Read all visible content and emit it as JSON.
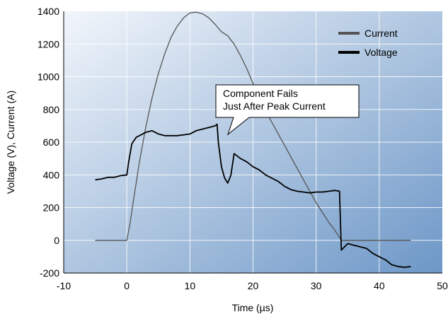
{
  "chart_data": {
    "type": "line",
    "title": "",
    "xlabel": "Time (µs)",
    "ylabel": "Voltage (V), Current (A)",
    "xlim": [
      -10,
      50
    ],
    "ylim": [
      -200,
      1400
    ],
    "x_ticks": [
      -10,
      0,
      10,
      20,
      30,
      40,
      50
    ],
    "y_ticks": [
      -200,
      0,
      200,
      400,
      600,
      800,
      1000,
      1200,
      1400
    ],
    "grid": true,
    "legend_position": "top-right",
    "series": [
      {
        "name": "Current",
        "color": "#555555",
        "points": [
          [
            -5,
            0
          ],
          [
            -3,
            0
          ],
          [
            -1,
            0
          ],
          [
            0,
            0
          ],
          [
            0.5,
            100
          ],
          [
            1,
            230
          ],
          [
            2,
            480
          ],
          [
            3,
            690
          ],
          [
            4,
            870
          ],
          [
            5,
            1020
          ],
          [
            6,
            1140
          ],
          [
            7,
            1240
          ],
          [
            8,
            1310
          ],
          [
            9,
            1360
          ],
          [
            10,
            1390
          ],
          [
            11,
            1395
          ],
          [
            12,
            1385
          ],
          [
            13,
            1360
          ],
          [
            14,
            1320
          ],
          [
            15,
            1275
          ],
          [
            16,
            1250
          ],
          [
            17,
            1200
          ],
          [
            18,
            1130
          ],
          [
            19,
            1050
          ],
          [
            20,
            960
          ],
          [
            21,
            870
          ],
          [
            22,
            790
          ],
          [
            23,
            720
          ],
          [
            24,
            650
          ],
          [
            25,
            580
          ],
          [
            26,
            510
          ],
          [
            27,
            440
          ],
          [
            28,
            370
          ],
          [
            29,
            300
          ],
          [
            30,
            230
          ],
          [
            31,
            170
          ],
          [
            32,
            110
          ],
          [
            33,
            60
          ],
          [
            34,
            0
          ],
          [
            36,
            0
          ],
          [
            38,
            0
          ],
          [
            40,
            0
          ],
          [
            42,
            0
          ],
          [
            44,
            0
          ],
          [
            45,
            0
          ]
        ]
      },
      {
        "name": "Voltage",
        "color": "#000000",
        "points": [
          [
            -5,
            370
          ],
          [
            -4,
            375
          ],
          [
            -3,
            385
          ],
          [
            -2,
            385
          ],
          [
            -1,
            395
          ],
          [
            0,
            400
          ],
          [
            0.3,
            480
          ],
          [
            0.8,
            590
          ],
          [
            1.5,
            630
          ],
          [
            2,
            640
          ],
          [
            3,
            660
          ],
          [
            4,
            670
          ],
          [
            5,
            650
          ],
          [
            6,
            640
          ],
          [
            7,
            640
          ],
          [
            8,
            640
          ],
          [
            9,
            645
          ],
          [
            10,
            650
          ],
          [
            11,
            670
          ],
          [
            12,
            680
          ],
          [
            13,
            690
          ],
          [
            14,
            700
          ],
          [
            14.3,
            710
          ],
          [
            14.5,
            600
          ],
          [
            15,
            450
          ],
          [
            15.5,
            380
          ],
          [
            16,
            350
          ],
          [
            16.5,
            400
          ],
          [
            17,
            530
          ],
          [
            18,
            500
          ],
          [
            19,
            480
          ],
          [
            20,
            450
          ],
          [
            21,
            430
          ],
          [
            22,
            400
          ],
          [
            23,
            380
          ],
          [
            24,
            360
          ],
          [
            25,
            330
          ],
          [
            26,
            310
          ],
          [
            27,
            300
          ],
          [
            28,
            295
          ],
          [
            29,
            290
          ],
          [
            30,
            295
          ],
          [
            31,
            295
          ],
          [
            32,
            300
          ],
          [
            33,
            305
          ],
          [
            33.7,
            300
          ],
          [
            34,
            -60
          ],
          [
            35,
            -20
          ],
          [
            36,
            -30
          ],
          [
            37,
            -40
          ],
          [
            38,
            -50
          ],
          [
            39,
            -80
          ],
          [
            40,
            -100
          ],
          [
            41,
            -120
          ],
          [
            42,
            -150
          ],
          [
            43,
            -160
          ],
          [
            44,
            -165
          ],
          [
            45,
            -160
          ]
        ]
      }
    ],
    "annotations": [
      {
        "line1": "Component Fails",
        "line2": "Just After Peak Current",
        "x": 15,
        "y": 770
      }
    ]
  },
  "colors": {
    "plot_bg_start": "#f2f6fb",
    "plot_bg_end": "#6d97c7",
    "grid": "#ffffff",
    "axis": "#000000"
  }
}
